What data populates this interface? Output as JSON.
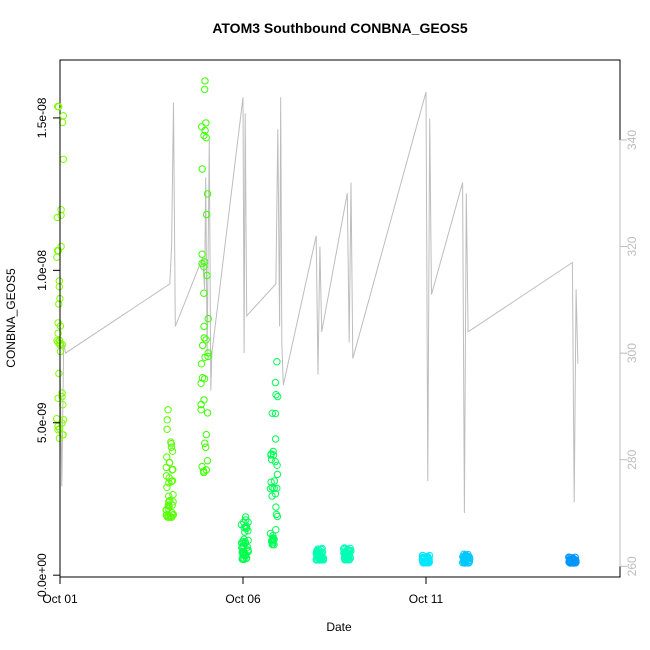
{
  "chart_data": {
    "type": "scatter",
    "title": "ATOM3 Southbound CONBNA_GEOS5",
    "xlabel": "Date",
    "ylabel": "CONBNA_GEOS5",
    "xlim": [
      0.0,
      15.3
    ],
    "ylim": [
      -6e-11,
      1.69e-08
    ],
    "y2lim": [
      258,
      355
    ],
    "x_ticks": [
      {
        "value": 0,
        "label": "Oct 01"
      },
      {
        "value": 5,
        "label": "Oct 06"
      },
      {
        "value": 10,
        "label": "Oct 11"
      }
    ],
    "y_ticks": [
      {
        "value": 0,
        "label": "0.0e+00"
      },
      {
        "value": 5e-09,
        "label": "5.0e-09"
      },
      {
        "value": 1e-08,
        "label": "1.0e-08"
      },
      {
        "value": 1.5e-08,
        "label": "1.5e-08"
      }
    ],
    "y2_ticks": [
      {
        "value": 260,
        "label": "260"
      },
      {
        "value": 280,
        "label": "280"
      },
      {
        "value": 300,
        "label": "300"
      },
      {
        "value": 320,
        "label": "320"
      },
      {
        "value": 340,
        "label": "340"
      }
    ],
    "grid": false,
    "series": [
      {
        "marker": "open-circle",
        "clusters": [
          {
            "x": 0.0,
            "y_min": 4.4e-09,
            "y_max": 1.62e-08,
            "color": "#80ff00"
          },
          {
            "x": 3.0,
            "y_min": 1.9e-09,
            "y_max": 6.1e-09,
            "color": "#55ff00"
          },
          {
            "x": 3.95,
            "y_min": 3.3e-09,
            "y_max": 1.68e-08,
            "color": "#3cff00"
          },
          {
            "x": 5.05,
            "y_min": 5e-10,
            "y_max": 2e-09,
            "color": "#00ff4d"
          },
          {
            "x": 5.85,
            "y_min": 1e-09,
            "y_max": 7.4e-09,
            "color": "#00ff55"
          },
          {
            "x": 7.1,
            "y_min": 5e-10,
            "y_max": 9e-10,
            "color": "#00ffb0"
          },
          {
            "x": 7.85,
            "y_min": 5e-10,
            "y_max": 9e-10,
            "color": "#00ffb4"
          },
          {
            "x": 10.0,
            "y_min": 4e-10,
            "y_max": 6.5e-10,
            "color": "#00e8ff"
          },
          {
            "x": 11.1,
            "y_min": 4e-10,
            "y_max": 7e-10,
            "color": "#00c8ff"
          },
          {
            "x": 14.0,
            "y_min": 4e-10,
            "y_max": 6e-10,
            "color": "#0096ff"
          }
        ]
      },
      {
        "line_color": "#bdbdbd",
        "axis": "right",
        "points": [
          [
            0.0,
            298
          ],
          [
            0.05,
            275
          ],
          [
            0.1,
            302
          ],
          [
            0.15,
            300
          ],
          [
            3.0,
            313
          ],
          [
            3.05,
            320
          ],
          [
            3.1,
            347
          ],
          [
            3.15,
            305
          ],
          [
            3.9,
            318
          ],
          [
            3.95,
            312
          ],
          [
            3.98,
            333
          ],
          [
            4.02,
            300
          ],
          [
            4.08,
            340
          ],
          [
            4.12,
            293
          ],
          [
            4.15,
            300
          ],
          [
            5.0,
            348
          ],
          [
            5.03,
            300
          ],
          [
            5.06,
            345
          ],
          [
            5.1,
            307
          ],
          [
            5.9,
            313
          ],
          [
            5.95,
            342
          ],
          [
            6.0,
            305
          ],
          [
            6.03,
            348
          ],
          [
            6.06,
            302
          ],
          [
            6.1,
            294
          ],
          [
            7.0,
            322
          ],
          [
            7.05,
            296
          ],
          [
            7.1,
            320
          ],
          [
            7.15,
            304
          ],
          [
            7.85,
            330
          ],
          [
            7.9,
            302
          ],
          [
            7.95,
            332
          ],
          [
            8.0,
            299
          ],
          [
            10.0,
            349
          ],
          [
            10.05,
            276
          ],
          [
            10.1,
            344
          ],
          [
            10.15,
            311
          ],
          [
            11.0,
            332
          ],
          [
            11.05,
            270
          ],
          [
            11.1,
            330
          ],
          [
            11.15,
            304
          ],
          [
            14.0,
            317
          ],
          [
            14.05,
            272
          ],
          [
            14.1,
            312
          ],
          [
            14.15,
            298
          ]
        ]
      }
    ]
  }
}
